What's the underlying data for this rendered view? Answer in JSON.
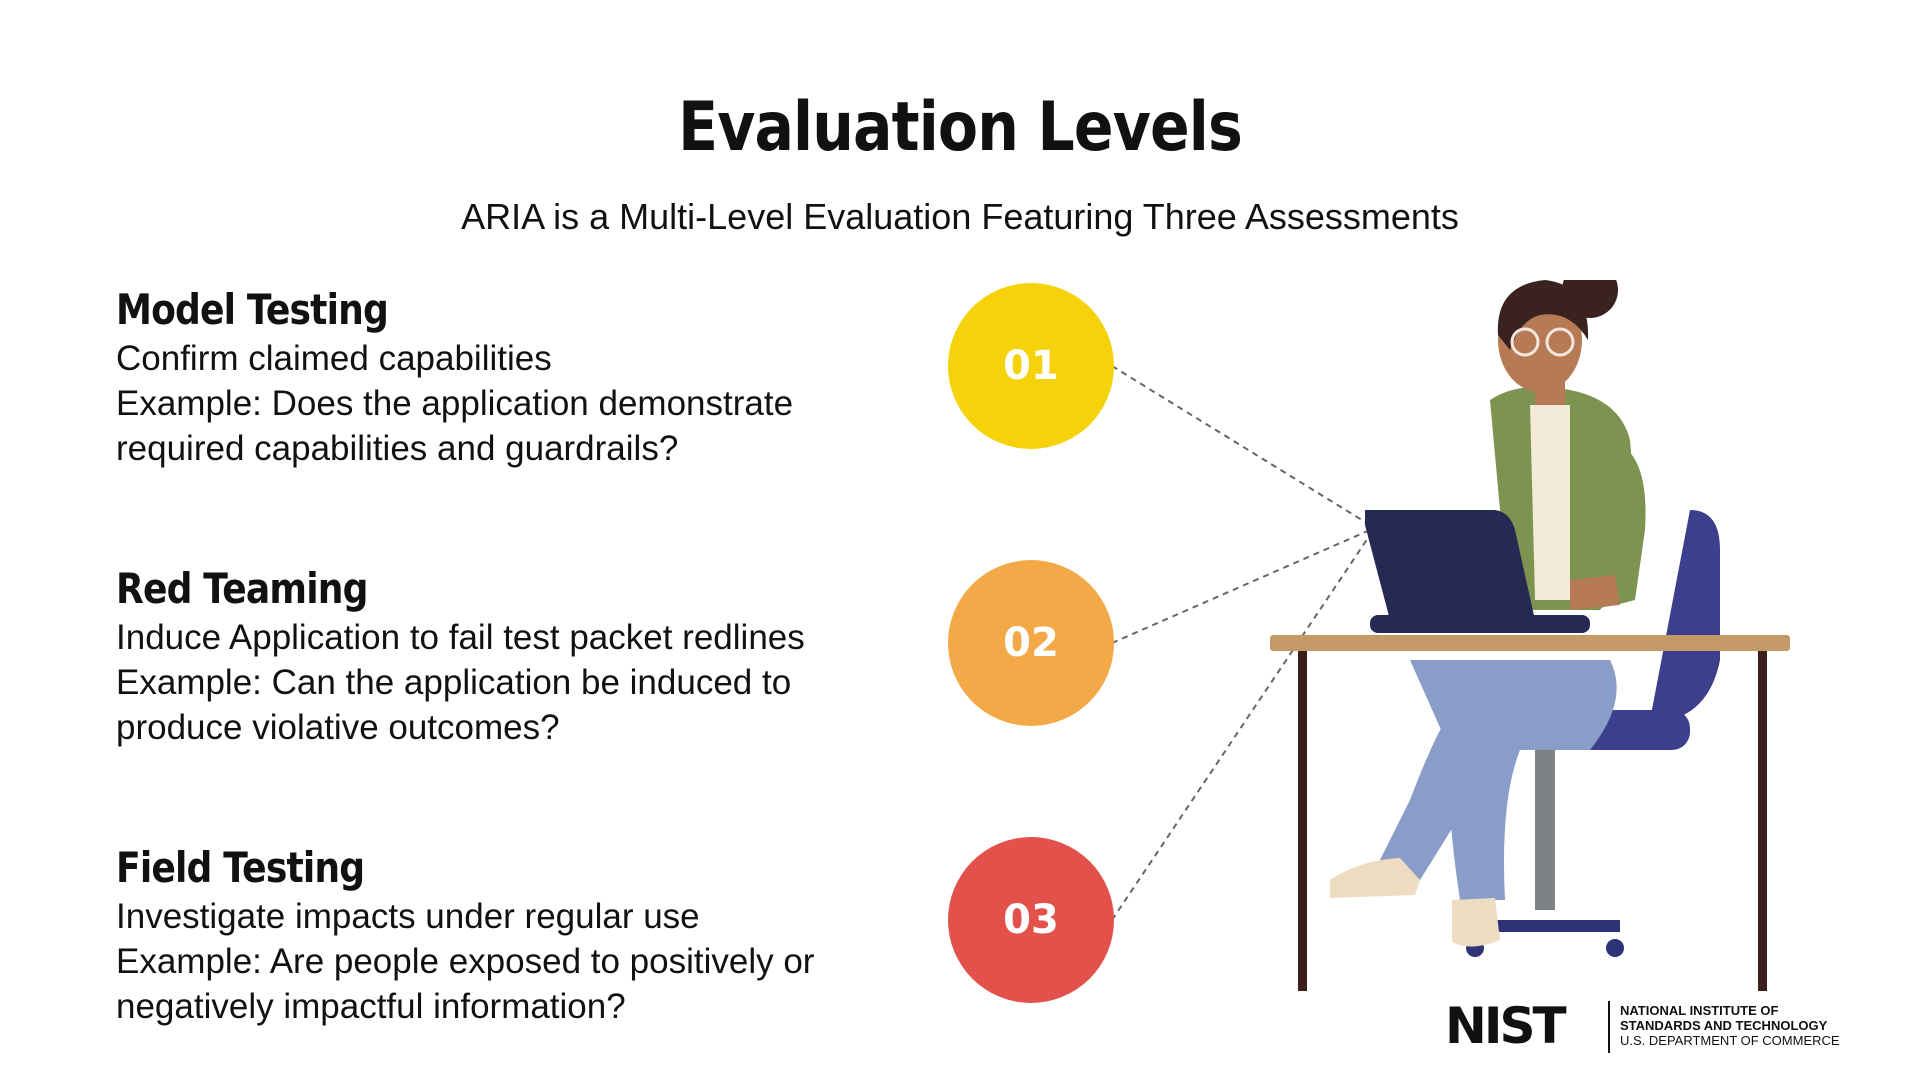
{
  "title": "Evaluation Levels",
  "subtitle": "ARIA is a Multi-Level Evaluation Featuring Three Assessments",
  "levels": [
    {
      "number": "01",
      "heading": "Model Testing",
      "line1": "Confirm claimed capabilities",
      "line2": "Example: Does the application demonstrate",
      "line3": "required capabilities and guardrails?",
      "color": "#F6D20A"
    },
    {
      "number": "02",
      "heading": "Red Teaming",
      "line1": "Induce Application to fail test packet redlines",
      "line2": "Example: Can the application be induced to",
      "line3": "produce violative outcomes?",
      "color": "#F4A948"
    },
    {
      "number": "03",
      "heading": "Field Testing",
      "line1": "Investigate impacts under regular use",
      "line2": "Example: Are people exposed to positively or",
      "line3": "negatively impactful information?",
      "color": "#E2524A"
    }
  ],
  "logo": {
    "mark": "NIST",
    "line1": "NATIONAL INSTITUTE OF",
    "line2": "STANDARDS AND TECHNOLOGY",
    "line3": "U.S. DEPARTMENT OF COMMERCE"
  },
  "illustration": "person-at-laptop-illustration"
}
